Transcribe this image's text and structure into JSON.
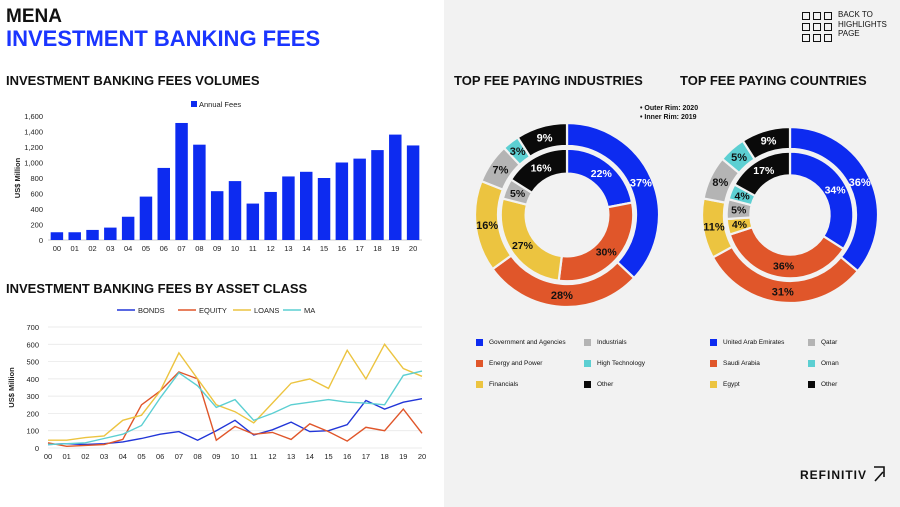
{
  "header": {
    "region": "MENA",
    "title": "INVESTMENT BANKING FEES"
  },
  "nav": {
    "back_line1": "BACK TO",
    "back_line2": "HIGHLIGHTS",
    "back_line3": "PAGE"
  },
  "brand": "REFINITIV",
  "sections": {
    "volumes": "INVESTMENT BANKING FEES VOLUMES",
    "asset_class": "INVESTMENT BANKING FEES BY ASSET CLASS",
    "industries": "TOP FEE PAYING INDUSTRIES",
    "countries": "TOP FEE PAYING COUNTRIES"
  },
  "rim_note": {
    "outer": "• Outer Rim: 2020",
    "inner": "• Inner Rim: 2019"
  },
  "colors": {
    "blue": "#0d2bf0",
    "orange": "#e0562a",
    "yellow": "#ecc440",
    "gray": "#b4b4b4",
    "teal": "#5ccfd2",
    "black": "#0a0a0a"
  },
  "chart_data": [
    {
      "type": "bar",
      "title": "INVESTMENT BANKING FEES VOLUMES",
      "categories": [
        "00",
        "01",
        "02",
        "03",
        "04",
        "05",
        "06",
        "07",
        "08",
        "09",
        "10",
        "11",
        "12",
        "13",
        "14",
        "15",
        "16",
        "17",
        "18",
        "19",
        "20"
      ],
      "series": [
        {
          "name": "Annual Fees",
          "values": [
            100,
            100,
            130,
            160,
            300,
            560,
            930,
            1510,
            1230,
            630,
            760,
            470,
            620,
            820,
            880,
            800,
            1000,
            1050,
            1160,
            1360,
            1220
          ]
        }
      ],
      "ylabel": "US$ Million",
      "ylim": [
        0,
        1600
      ],
      "yticks": [
        "0",
        "200",
        "400",
        "600",
        "800",
        "1,000",
        "1,200",
        "1,400",
        "1,600"
      ],
      "legend": "top"
    },
    {
      "type": "line",
      "title": "INVESTMENT BANKING FEES BY ASSET CLASS",
      "categories": [
        "00",
        "01",
        "02",
        "03",
        "04",
        "05",
        "06",
        "07",
        "08",
        "09",
        "10",
        "11",
        "12",
        "13",
        "14",
        "15",
        "16",
        "17",
        "18",
        "19",
        "20"
      ],
      "series": [
        {
          "name": "BONDS",
          "values": [
            20,
            25,
            20,
            25,
            35,
            55,
            80,
            95,
            45,
            100,
            160,
            75,
            105,
            150,
            95,
            100,
            135,
            275,
            225,
            265,
            285
          ]
        },
        {
          "name": "EQUITY",
          "values": [
            30,
            10,
            15,
            20,
            50,
            250,
            330,
            440,
            400,
            45,
            125,
            80,
            90,
            50,
            140,
            95,
            40,
            120,
            100,
            225,
            85
          ]
        },
        {
          "name": "LOANS",
          "values": [
            45,
            45,
            60,
            70,
            160,
            190,
            330,
            550,
            400,
            250,
            210,
            145,
            260,
            375,
            400,
            345,
            565,
            400,
            600,
            460,
            415
          ]
        },
        {
          "name": "MA",
          "values": [
            20,
            25,
            30,
            55,
            80,
            130,
            290,
            435,
            360,
            235,
            280,
            160,
            200,
            250,
            265,
            280,
            265,
            260,
            250,
            420,
            445
          ]
        }
      ],
      "ylabel": "US$ Million",
      "ylim": [
        0,
        700
      ],
      "yticks": [
        "0",
        "100",
        "200",
        "300",
        "400",
        "500",
        "600",
        "700"
      ],
      "legend": "top"
    },
    {
      "type": "pie",
      "title": "TOP FEE PAYING INDUSTRIES",
      "outer": [
        {
          "label": "Government and Agencies",
          "value": 37,
          "text": "37%"
        },
        {
          "label": "Energy and Power",
          "value": 28,
          "text": "28%"
        },
        {
          "label": "Financials",
          "value": 16,
          "text": "16%"
        },
        {
          "label": "Industrials",
          "value": 7,
          "text": "7%"
        },
        {
          "label": "High Technology",
          "value": 3,
          "text": "3%"
        },
        {
          "label": "Other",
          "value": 9,
          "text": "9%"
        }
      ],
      "inner": [
        {
          "label": "Government and Agencies",
          "value": 22,
          "text": "22%"
        },
        {
          "label": "Energy and Power",
          "value": 30,
          "text": "30%"
        },
        {
          "label": "Financials",
          "value": 27,
          "text": "27%"
        },
        {
          "label": "Industrials",
          "value": 5,
          "text": "5%"
        },
        {
          "label": "High Technology",
          "value": 0,
          "text": ""
        },
        {
          "label": "Other",
          "value": 16,
          "text": "16%"
        }
      ],
      "legend": [
        {
          "label": "Government and Agencies",
          "color": "#0d2bf0"
        },
        {
          "label": "Energy and Power",
          "color": "#e0562a"
        },
        {
          "label": "Financials",
          "color": "#ecc440"
        },
        {
          "label": "Industrials",
          "color": "#b4b4b4"
        },
        {
          "label": "High Technology",
          "color": "#5ccfd2"
        },
        {
          "label": "Other",
          "color": "#0a0a0a"
        }
      ]
    },
    {
      "type": "pie",
      "title": "TOP FEE PAYING COUNTRIES",
      "outer": [
        {
          "label": "United Arab Emirates",
          "value": 36,
          "text": "36%"
        },
        {
          "label": "Saudi Arabia",
          "value": 31,
          "text": "31%"
        },
        {
          "label": "Egypt",
          "value": 11,
          "text": "11%"
        },
        {
          "label": "Qatar",
          "value": 8,
          "text": "8%"
        },
        {
          "label": "Oman",
          "value": 5,
          "text": "5%"
        },
        {
          "label": "Other",
          "value": 9,
          "text": "9%"
        }
      ],
      "inner": [
        {
          "label": "United Arab Emirates",
          "value": 34,
          "text": "34%"
        },
        {
          "label": "Saudi Arabia",
          "value": 36,
          "text": "36%"
        },
        {
          "label": "Egypt",
          "value": 4,
          "text": "4%"
        },
        {
          "label": "Qatar",
          "value": 5,
          "text": "5%"
        },
        {
          "label": "Oman",
          "value": 4,
          "text": "4%"
        },
        {
          "label": "Other",
          "value": 17,
          "text": "17%"
        }
      ],
      "legend": [
        {
          "label": "United Arab Emirates",
          "color": "#0d2bf0"
        },
        {
          "label": "Saudi Arabia",
          "color": "#e0562a"
        },
        {
          "label": "Egypt",
          "color": "#ecc440"
        },
        {
          "label": "Qatar",
          "color": "#b4b4b4"
        },
        {
          "label": "Oman",
          "color": "#5ccfd2"
        },
        {
          "label": "Other",
          "color": "#0a0a0a"
        }
      ]
    }
  ]
}
